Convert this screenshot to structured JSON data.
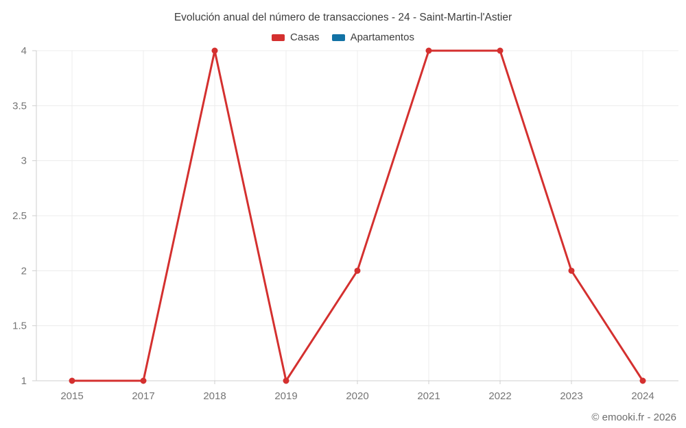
{
  "watermark": "© emooki.fr - 2026",
  "chart_data": {
    "type": "line",
    "title": "Evolución anual del número de transacciones - 24 - Saint-Martin-l'Astier",
    "categories": [
      "2015",
      "2017",
      "2018",
      "2019",
      "2020",
      "2021",
      "2022",
      "2023",
      "2024"
    ],
    "series": [
      {
        "name": "Casas",
        "color": "#d4302f",
        "values": [
          1,
          1,
          4,
          1,
          2,
          4,
          4,
          2,
          1
        ]
      },
      {
        "name": "Apartamentos",
        "color": "#1272a5",
        "values": []
      }
    ],
    "xlabel": "",
    "ylabel": "",
    "ylim": [
      1,
      4
    ],
    "yticks": [
      1,
      1.5,
      2,
      2.5,
      3,
      3.5,
      4
    ],
    "grid": true,
    "legend_position": "top",
    "marker": "circle"
  }
}
